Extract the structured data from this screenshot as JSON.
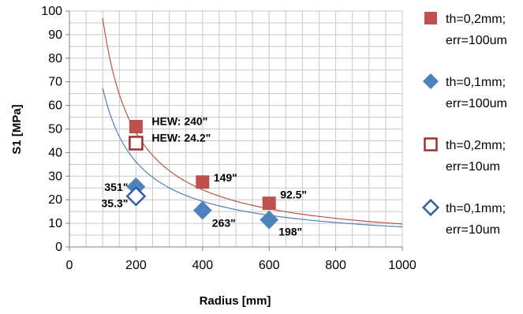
{
  "chart_data": {
    "type": "scatter",
    "xlabel": "Radius [mm]",
    "ylabel": "S1 [MPa]",
    "xlim": [
      0,
      1000
    ],
    "ylim": [
      0,
      100
    ],
    "xticks": [
      "0",
      "200",
      "400",
      "600",
      "800",
      "1000"
    ],
    "yticks": [
      "0",
      "10",
      "20",
      "30",
      "40",
      "50",
      "60",
      "70",
      "80",
      "90",
      "100"
    ],
    "grid": true,
    "legend_position": "right",
    "series": [
      {
        "name": [
          "th=0,2mm;",
          "err=100um"
        ],
        "marker": "square-filled",
        "color": "#c0504d",
        "points": [
          {
            "x": 200,
            "y": 51,
            "label": "HEW: 240\""
          },
          {
            "x": 400,
            "y": 27.5,
            "label": "149\""
          },
          {
            "x": 600,
            "y": 18.5,
            "label": "92.5\""
          }
        ]
      },
      {
        "name": [
          "th=0,1mm;",
          "err=100um"
        ],
        "marker": "diamond-filled",
        "color": "#4f81bd",
        "points": [
          {
            "x": 200,
            "y": 25.5,
            "label": "351\""
          },
          {
            "x": 400,
            "y": 15.5,
            "label": "263\""
          },
          {
            "x": 600,
            "y": 11.5,
            "label": "198\""
          }
        ]
      },
      {
        "name": [
          "th=0,2mm;",
          "err=10um"
        ],
        "marker": "square-open",
        "color": "#a0302d",
        "points": [
          {
            "x": 200,
            "y": 44,
            "label": "HEW: 24.2\""
          }
        ]
      },
      {
        "name": [
          "th=0,1mm;",
          "err=10um"
        ],
        "marker": "diamond-open",
        "color": "#2f60a8",
        "points": [
          {
            "x": 200,
            "y": 21.5,
            "label": "35.3\""
          }
        ]
      }
    ],
    "trendlines": [
      {
        "color": "#c0504d",
        "x_range": [
          100,
          1000
        ],
        "coefficient": 9700,
        "exponent": -1
      },
      {
        "color": "#4f81bd",
        "x_range": [
          100,
          1000
        ],
        "coefficient": 4250,
        "exponent": -0.9
      }
    ]
  }
}
